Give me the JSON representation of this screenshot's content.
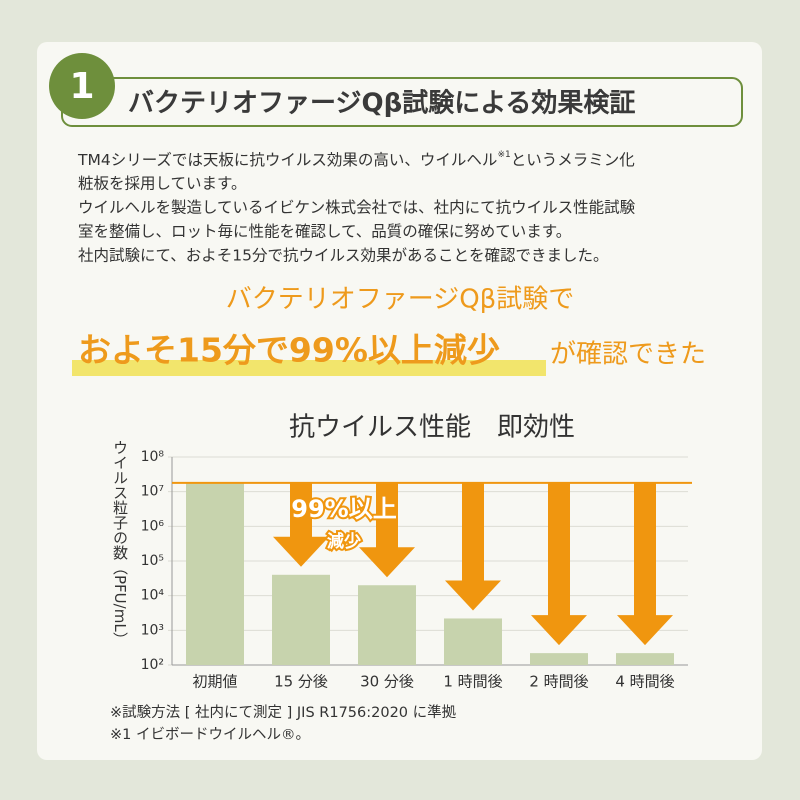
{
  "header": {
    "number": "1",
    "title": "バクテリオファージQβ試験による効果検証"
  },
  "body_first_line": {
    "before": "TM4シリーズでは天板に抗ウイルス効果の高い、ウイルヘル",
    "note": "※1",
    "after": "というメラミン化"
  },
  "body": [
    "粧板を採用しています。",
    "ウイルヘルを製造しているイビケン株式会社では、社内にて抗ウイルス性能試験",
    "室を整備し、ロット毎に性能を確認して、品質の確保に努めています。",
    "社内試験にて、およそ15分で抗ウイルス効果があることを確認できました。"
  ],
  "headline": {
    "line1": "バクテリオファージQβ試験で",
    "highlight": "およそ15分で99%以上減少",
    "rest": "が確認できた"
  },
  "chart_data": {
    "type": "bar",
    "title": "抗ウイルス性能　即効性",
    "y_label": "ウイルス粒子の数（PFU/mL）",
    "categories": [
      "初期値",
      "15 分後",
      "30 分後",
      "1 時間後",
      "2 時間後",
      "4 時間後"
    ],
    "values": [
      18000000,
      40000,
      20000,
      2200,
      220,
      220
    ],
    "color": "#c7d3ad",
    "arrow_color": "#f0960f",
    "log_scale": true,
    "ylim": [
      100,
      100000000
    ],
    "yticks": [
      {
        "value": 100,
        "label": "10²"
      },
      {
        "value": 1000,
        "label": "10³"
      },
      {
        "value": 10000,
        "label": "10⁴"
      },
      {
        "value": 100000,
        "label": "10⁵"
      },
      {
        "value": 1000000,
        "label": "10⁶"
      },
      {
        "value": 10000000,
        "label": "10⁷"
      },
      {
        "value": 100000000,
        "label": "10⁸"
      }
    ],
    "grid": true,
    "annotation": [
      "99%以上",
      "減少"
    ]
  },
  "footnotes": [
    "※試験方法 [ 社内にて測定 ] JIS R1756:2020 に準拠",
    "※1 イビボードウイルヘル®。"
  ]
}
